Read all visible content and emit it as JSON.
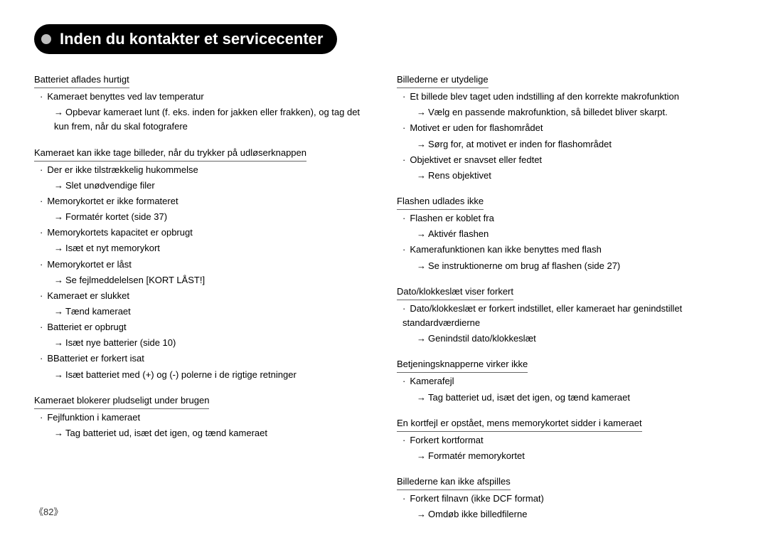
{
  "title": "Inden du kontakter et servicecenter",
  "page_number": "《82》",
  "left": [
    {
      "h": "Batteriet aflades hurtigt",
      "items": [
        {
          "c": "Kameraet benyttes ved lav temperatur",
          "s": "Opbevar kameraet lunt (f. eks. inden for jakken eller frakken), og tag det kun frem, når du skal fotografere"
        }
      ]
    },
    {
      "h": "Kameraet kan ikke tage billeder, når du trykker på udløserknappen",
      "items": [
        {
          "c": "Der er ikke tilstrækkelig hukommelse",
          "s": "Slet unødvendige filer"
        },
        {
          "c": "Memorykortet er ikke formateret",
          "s": "Formatér kortet (side 37)"
        },
        {
          "c": "Memorykortets kapacitet er opbrugt",
          "s": "Isæt et nyt memorykort"
        },
        {
          "c": "Memorykortet er låst",
          "s": "Se fejlmeddelelsen [KORT LÅST!]"
        },
        {
          "c": "Kameraet er slukket",
          "s": "Tænd kameraet"
        },
        {
          "c": "Batteriet er opbrugt",
          "s": "Isæt nye batterier (side 10)"
        },
        {
          "c": "BBatteriet er forkert isat",
          "s": "Isæt batteriet med (+) og (-) polerne i de rigtige retninger"
        }
      ]
    },
    {
      "h": "Kameraet blokerer pludseligt under brugen",
      "items": [
        {
          "c": "Fejlfunktion i kameraet",
          "s": "Tag batteriet ud, isæt det igen, og tænd kameraet"
        }
      ]
    }
  ],
  "right": [
    {
      "h": "Billederne er utydelige",
      "items": [
        {
          "c": "Et billede blev taget uden indstilling af den korrekte makrofunktion",
          "s": "Vælg en passende makrofunktion, så billedet bliver skarpt."
        },
        {
          "c": "Motivet er uden for flashområdet",
          "s": "Sørg for, at motivet er inden for flashområdet"
        },
        {
          "c": "Objektivet er snavset eller fedtet",
          "s": "Rens objektivet"
        }
      ]
    },
    {
      "h": "Flashen udlades ikke",
      "items": [
        {
          "c": "Flashen er koblet fra",
          "s": "Aktivér flashen"
        },
        {
          "c": "Kamerafunktionen kan ikke benyttes med flash",
          "s": "Se instruktionerne om brug af flashen (side 27)"
        }
      ]
    },
    {
      "h": "Dato/klokkeslæt viser forkert",
      "items": [
        {
          "c": "Dato/klokkeslæt er forkert indstillet, eller kameraet har genindstillet standardværdierne",
          "s": "Genindstil dato/klokkeslæt"
        }
      ]
    },
    {
      "h": "Betjeningsknapperne virker ikke",
      "items": [
        {
          "c": "Kamerafejl",
          "s": "Tag batteriet ud, isæt det igen, og tænd kameraet"
        }
      ]
    },
    {
      "h": "En kortfejl er opstået, mens memorykortet sidder i kameraet",
      "items": [
        {
          "c": "Forkert kortformat",
          "s": "Formatér memorykortet"
        }
      ]
    },
    {
      "h": "Billederne kan ikke afspilles",
      "items": [
        {
          "c": "Forkert filnavn (ikke DCF format)",
          "s": "Omdøb ikke billedfilerne"
        }
      ]
    }
  ]
}
